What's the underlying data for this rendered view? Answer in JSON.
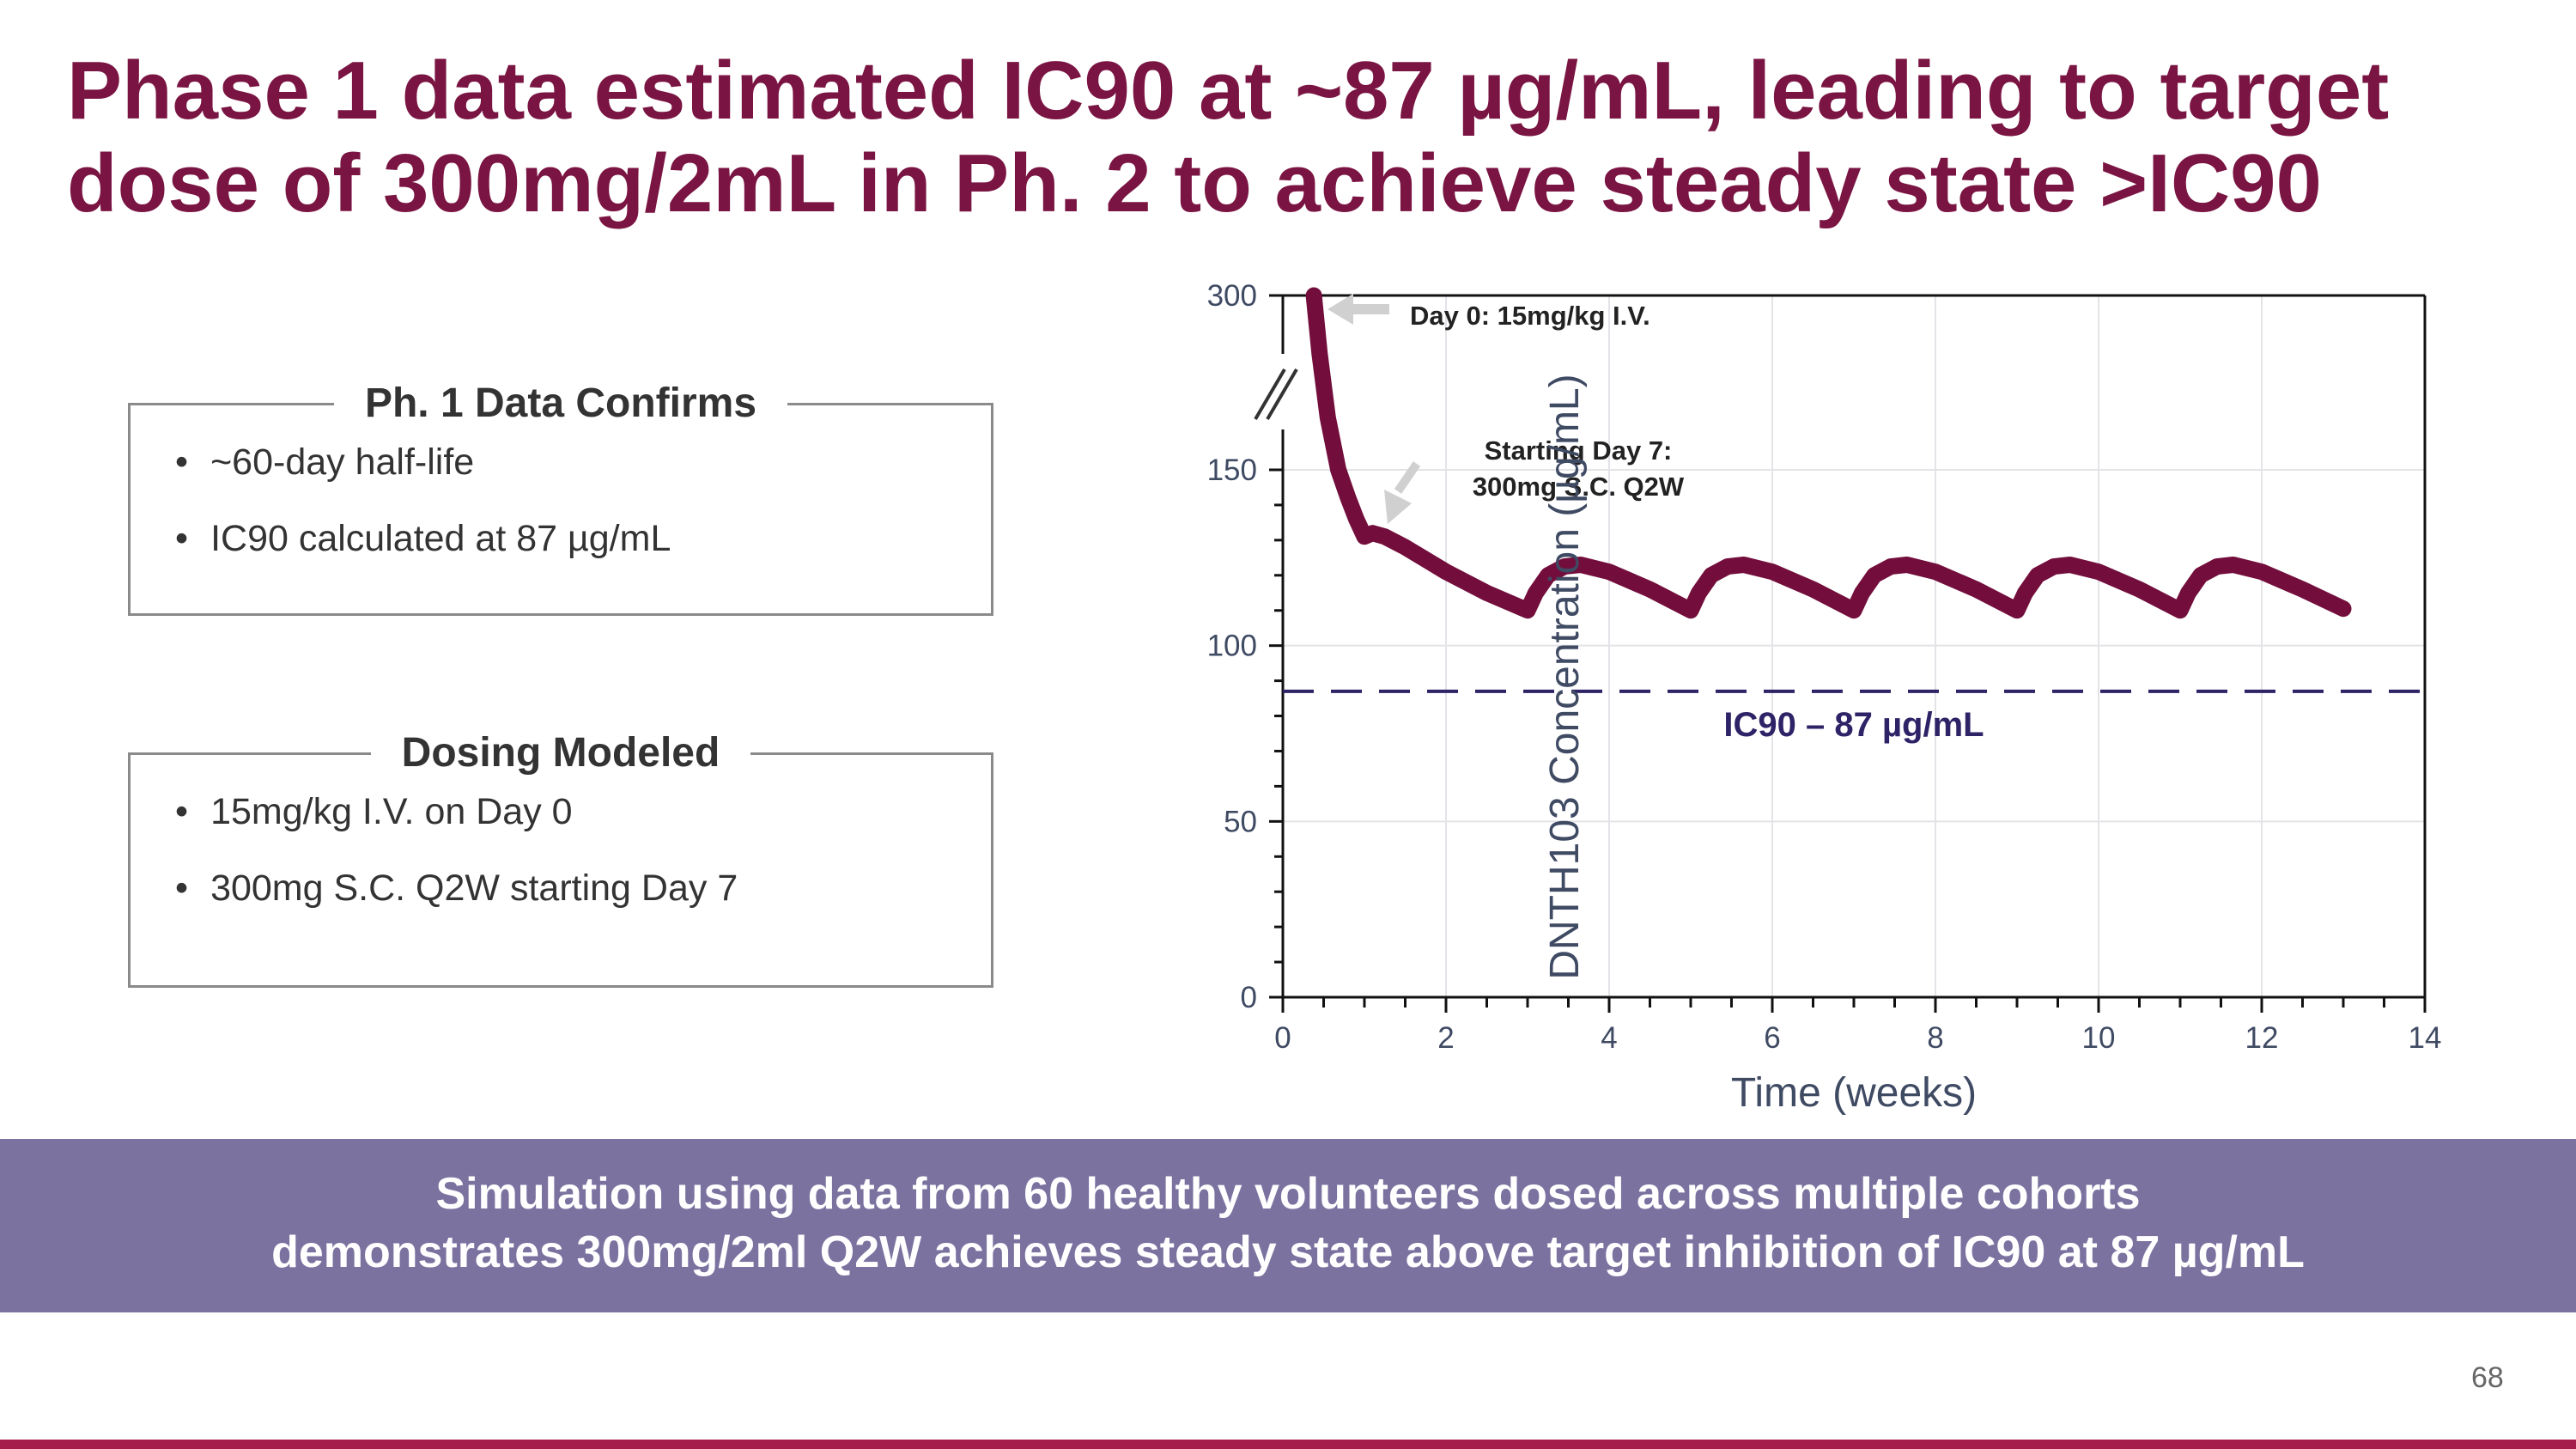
{
  "title": {
    "line1": "Phase 1 data estimated IC90 at ~87 µg/mL, leading to target",
    "line2": "dose of 300mg/2mL in Ph. 2 to achieve steady state >IC90"
  },
  "boxes": [
    {
      "heading": "Ph. 1 Data Confirms",
      "bullets": [
        "~60-day half-life",
        "IC90 calculated at 87 µg/mL"
      ]
    },
    {
      "heading": "Dosing Modeled",
      "bullets": [
        "15mg/kg I.V. on Day 0",
        "300mg S.C. Q2W starting Day 7"
      ]
    }
  ],
  "banner": {
    "line1": "Simulation using data from 60 healthy volunteers dosed across multiple cohorts",
    "line2": "demonstrates 300mg/2ml Q2W achieves steady state above target inhibition of IC90 at 87 µg/mL"
  },
  "page_number": "68",
  "colors": {
    "title": "#7a1442",
    "curve": "#730e3c",
    "ic90": "#2e2366",
    "banner": "#7b72a0",
    "bottom_bar": "#a51d4a"
  },
  "chart_data": {
    "type": "line",
    "xlabel": "Time (weeks)",
    "ylabel": "DNTH103 Concentration (µg/mL)",
    "xlim": [
      0,
      14
    ],
    "ylim": [
      0,
      300
    ],
    "y_axis_break": [
      150,
      300
    ],
    "x_ticks": [
      "0",
      "2",
      "4",
      "6",
      "8",
      "10",
      "12",
      "14"
    ],
    "y_ticks": [
      "0",
      "50",
      "100",
      "150",
      "300"
    ],
    "grid": true,
    "series": [
      {
        "x": [
          0.38,
          0.45,
          0.55,
          0.68,
          0.8,
          0.9,
          1.0,
          1.1,
          1.25,
          1.5,
          2.0,
          2.5,
          3.0,
          3.1,
          3.25,
          3.45,
          3.65,
          4.0,
          4.5,
          5.0,
          5.1,
          5.25,
          5.45,
          5.65,
          6.0,
          6.5,
          7.0,
          7.1,
          7.25,
          7.45,
          7.65,
          8.0,
          8.5,
          9.0,
          9.1,
          9.25,
          9.45,
          9.65,
          10.0,
          10.5,
          11.0,
          11.1,
          11.25,
          11.45,
          11.65,
          12.0,
          12.5,
          13.0
        ],
        "y": [
          300,
          250,
          195,
          150,
          142,
          136,
          131,
          132,
          131,
          128,
          121,
          115,
          110,
          115,
          120,
          122.5,
          123,
          121,
          116,
          110,
          115,
          120,
          122.5,
          123,
          121,
          116,
          110,
          115,
          120,
          122.5,
          123,
          121,
          116,
          110,
          115,
          120,
          122.5,
          123,
          121,
          116,
          110,
          115,
          120,
          122.5,
          123,
          121,
          116,
          110.5
        ]
      }
    ],
    "reference_line": {
      "y": 87,
      "label": "IC90 – 87 µg/mL"
    },
    "annotations": [
      {
        "text": "Day 0: 15mg/kg I.V.",
        "x": 0.38,
        "y": 300
      },
      {
        "line1": "Starting Day 7:",
        "line2": "300mg S.C. Q2W",
        "x": 1.0,
        "y": 131
      }
    ]
  }
}
